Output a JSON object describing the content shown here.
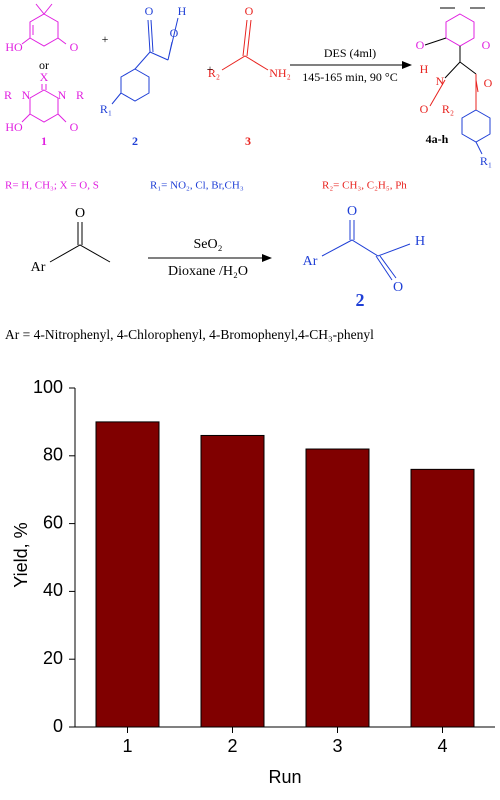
{
  "scheme_1": {
    "labels": [
      "HO",
      "O",
      "or",
      "X",
      "R",
      "N",
      "N",
      "R",
      "HO",
      "O",
      "+",
      "O",
      "H",
      "O",
      "R₁",
      "+",
      "O",
      "R₂",
      "NH₂",
      "O",
      "H",
      "N",
      "O",
      "R₂",
      "O",
      "O",
      "R₁"
    ],
    "compound_numbers": [
      "1",
      "2",
      "3",
      "4a-h"
    ],
    "conditions": [
      "DES (4ml)",
      "145-165 min, 90 °C"
    ],
    "substituents": [
      "R= H, CH₃; X = O, S",
      "R₁= NO₂, Cl, Br,CH₃",
      "R₂= CH₃, C₂H₅, Ph"
    ]
  },
  "scheme_2": {
    "labels": [
      "O",
      "Ar",
      "Ar",
      "O",
      "H",
      "O"
    ],
    "reagent": "SeO₂",
    "solvent": "Dioxane /H₂O",
    "product_number": "2",
    "footnote": "Ar = 4-Nitrophenyl, 4-Chlorophenyl, 4-Bromophenyl,4-CH₃-phenyl"
  },
  "chart_data": {
    "type": "bar",
    "categories": [
      "1",
      "2",
      "3",
      "4"
    ],
    "values": [
      90,
      86,
      82,
      76
    ],
    "color": "#800000",
    "ylim": [
      0,
      100
    ],
    "yticks": [
      0,
      20,
      40,
      60,
      80,
      100
    ],
    "x_label": "Run",
    "y_label": "Yield, %"
  }
}
